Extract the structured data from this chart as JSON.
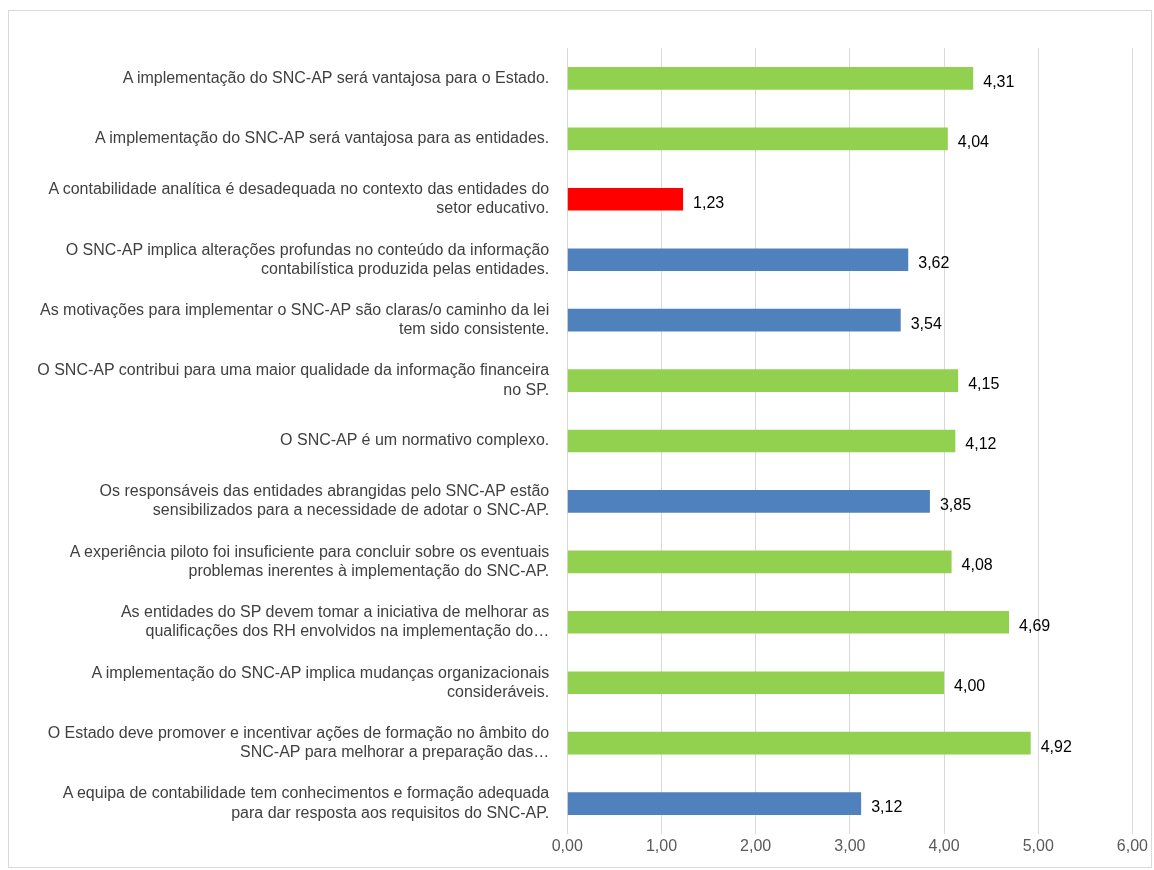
{
  "chart_data": {
    "type": "bar",
    "orientation": "horizontal",
    "categories": [
      "A implementação do SNC-AP será vantajosa para o Estado.",
      "A implementação do SNC-AP será vantajosa para as entidades.",
      "A contabilidade analítica é desadequada no contexto das entidades do setor educativo.",
      "O SNC-AP implica alterações profundas no conteúdo da informação contabilística produzida pelas entidades.",
      "As motivações para implementar o SNC-AP são claras/o caminho da lei tem sido consistente.",
      "O SNC-AP contribui para uma maior qualidade da informação financeira no SP.",
      "O SNC-AP é um normativo complexo.",
      "Os responsáveis das entidades abrangidas pelo SNC-AP estão sensibilizados para a necessidade de adotar o SNC-AP.",
      "A experiência piloto foi insuficiente para concluir sobre os eventuais problemas inerentes à implementação do SNC-AP.",
      "As entidades do SP devem tomar a iniciativa de melhorar as qualificações dos RH envolvidos na implementação do…",
      "A implementação do SNC-AP implica mudanças organizacionais consideráveis.",
      "O Estado deve promover e incentivar ações de formação no âmbito do SNC-AP para melhorar a preparação das…",
      "A equipa de contabilidade tem conhecimentos e formação adequada para dar resposta aos requisitos do SNC-AP."
    ],
    "values": [
      4.31,
      4.04,
      1.23,
      3.62,
      3.54,
      4.15,
      4.12,
      3.85,
      4.08,
      4.69,
      4.0,
      4.92,
      3.12
    ],
    "value_labels": [
      "4,31",
      "4,04",
      "1,23",
      "3,62",
      "3,54",
      "4,15",
      "4,12",
      "3,85",
      "4,08",
      "4,69",
      "4,00",
      "4,92",
      "3,12"
    ],
    "colors": [
      "#92d050",
      "#92d050",
      "#ff0000",
      "#4f81bd",
      "#4f81bd",
      "#92d050",
      "#92d050",
      "#4f81bd",
      "#92d050",
      "#92d050",
      "#92d050",
      "#92d050",
      "#4f81bd"
    ],
    "xlim": [
      0,
      6
    ],
    "xticks": [
      {
        "value": 0,
        "label": "0,00"
      },
      {
        "value": 1,
        "label": "1,00"
      },
      {
        "value": 2,
        "label": "2,00"
      },
      {
        "value": 3,
        "label": "3,00"
      },
      {
        "value": 4,
        "label": "4,00"
      },
      {
        "value": 5,
        "label": "5,00"
      },
      {
        "value": 6,
        "label": "6,00"
      }
    ],
    "grid": "x"
  }
}
